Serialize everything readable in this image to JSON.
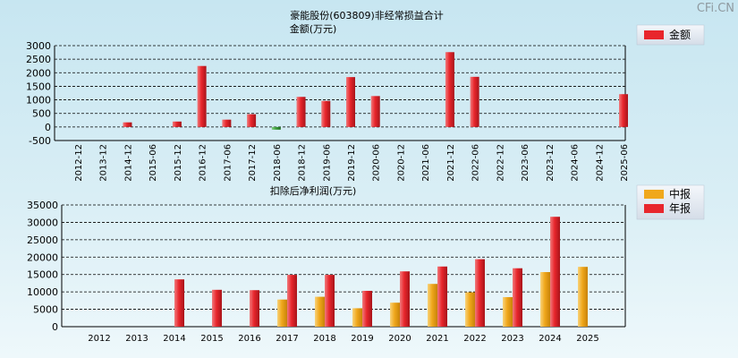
{
  "watermark": "CFi.CN",
  "chart_data": [
    {
      "type": "bar",
      "title": "豪能股份(603809)非经常损益合计",
      "subtitle": "金额(万元)",
      "categories": [
        "2012-12",
        "2013-12",
        "2014-12",
        "2015-06",
        "2015-12",
        "2016-12",
        "2017-06",
        "2017-12",
        "2018-06",
        "2018-12",
        "2019-06",
        "2019-12",
        "2020-06",
        "2020-12",
        "2021-06",
        "2021-12",
        "2022-06",
        "2022-12",
        "2023-06",
        "2023-12",
        "2024-06",
        "2024-12",
        "2025-06"
      ],
      "series": [
        {
          "name": "金额",
          "color": "#e8262c",
          "negative_color": "#3a9a3a",
          "values": [
            0,
            0,
            170,
            0,
            200,
            2250,
            270,
            470,
            -100,
            1110,
            960,
            1840,
            1140,
            0,
            0,
            2760,
            1850,
            0,
            0,
            0,
            0,
            0,
            1210
          ]
        }
      ],
      "yticks": [
        3000,
        2500,
        2000,
        1500,
        1000,
        500,
        0,
        -500
      ],
      "ylim": [
        -500,
        3000
      ],
      "grid": true,
      "legend": "top-right"
    },
    {
      "type": "bar",
      "title": "扣除后净利润(万元)",
      "categories": [
        "2012",
        "2013",
        "2014",
        "2015",
        "2016",
        "2017",
        "2018",
        "2019",
        "2020",
        "2021",
        "2022",
        "2023",
        "2024",
        "2025"
      ],
      "series": [
        {
          "name": "中报",
          "color": "#f0a81c",
          "values": [
            null,
            null,
            null,
            null,
            null,
            7800,
            8600,
            5300,
            6900,
            12300,
            9900,
            8500,
            15700,
            17200
          ]
        },
        {
          "name": "年报",
          "color": "#e8262c",
          "values": [
            null,
            null,
            13600,
            10600,
            10500,
            14900,
            14900,
            10300,
            15900,
            17300,
            19400,
            16800,
            31600,
            null
          ]
        }
      ],
      "yticks": [
        35000,
        30000,
        25000,
        20000,
        15000,
        10000,
        5000,
        0
      ],
      "ylim": [
        0,
        35000
      ],
      "grid": true,
      "legend": "top-right"
    }
  ]
}
